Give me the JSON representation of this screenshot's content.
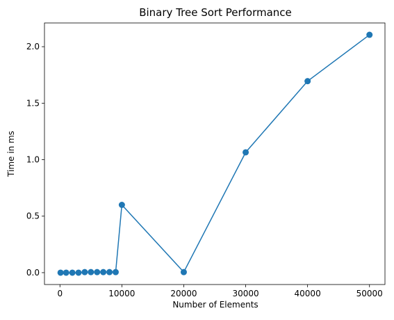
{
  "chart_data": {
    "type": "line",
    "title": "Binary Tree Sort Performance",
    "xlabel": "Number of Elements",
    "ylabel": "Time in ms",
    "xlim": [
      -2500,
      52500
    ],
    "ylim": [
      -0.105,
      2.21
    ],
    "xticks": [
      0,
      10000,
      20000,
      30000,
      40000,
      50000
    ],
    "xtick_labels": [
      "0",
      "10000",
      "20000",
      "30000",
      "40000",
      "50000"
    ],
    "yticks": [
      0.0,
      0.5,
      1.0,
      1.5,
      2.0
    ],
    "ytick_labels": [
      "0.0",
      "0.5",
      "1.0",
      "1.5",
      "2.0"
    ],
    "grid": false,
    "marker": "circle",
    "color": "#1f77b4",
    "series": [
      {
        "x": [
          100,
          1000,
          2000,
          3000,
          4000,
          5000,
          6000,
          7000,
          8000,
          9000,
          10000,
          20000,
          30000,
          40000,
          50000
        ],
        "y": [
          0.0,
          0.0,
          0.0,
          0.0,
          0.005,
          0.005,
          0.005,
          0.005,
          0.005,
          0.005,
          0.6,
          0.005,
          1.065,
          1.695,
          2.105
        ]
      }
    ]
  }
}
